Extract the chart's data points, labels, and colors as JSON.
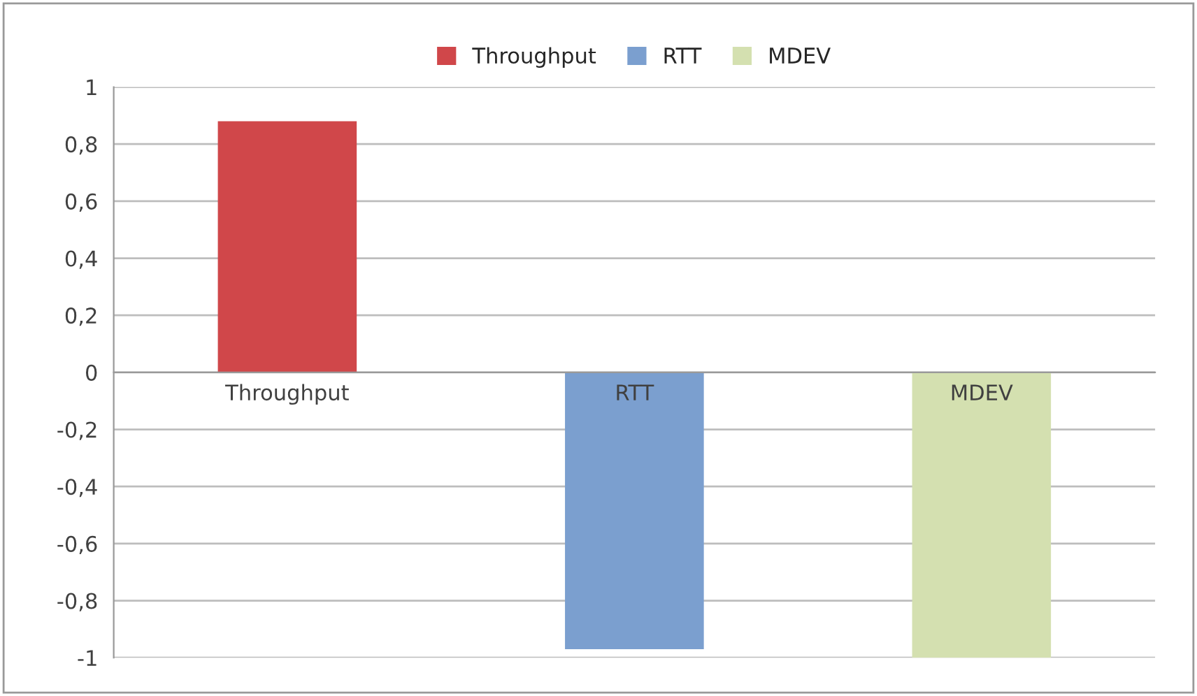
{
  "chart_data": {
    "type": "bar",
    "categories": [
      "Throughput",
      "RTT",
      "MDEV"
    ],
    "series": [
      {
        "name": "Throughput",
        "color": "#d0474a",
        "values": [
          0.88,
          null,
          null
        ]
      },
      {
        "name": "RTT",
        "color": "#7b9fcf",
        "values": [
          null,
          -0.97,
          null
        ]
      },
      {
        "name": "MDEV",
        "color": "#d4e0b0",
        "values": [
          null,
          null,
          -1.0
        ]
      }
    ],
    "ylim": [
      -1,
      1
    ],
    "yticks": [
      {
        "value": -1,
        "label": "-1"
      },
      {
        "value": -0.8,
        "label": "-0,8"
      },
      {
        "value": -0.6,
        "label": "-0,6"
      },
      {
        "value": -0.4,
        "label": "-0,4"
      },
      {
        "value": -0.2,
        "label": "-0,2"
      },
      {
        "value": 0,
        "label": "0"
      },
      {
        "value": 0.2,
        "label": "0,2"
      },
      {
        "value": 0.4,
        "label": "0,4"
      },
      {
        "value": 0.6,
        "label": "0,6"
      },
      {
        "value": 0.8,
        "label": "0,8"
      },
      {
        "value": 1,
        "label": "1"
      }
    ],
    "grid": "y",
    "legend": "top"
  }
}
